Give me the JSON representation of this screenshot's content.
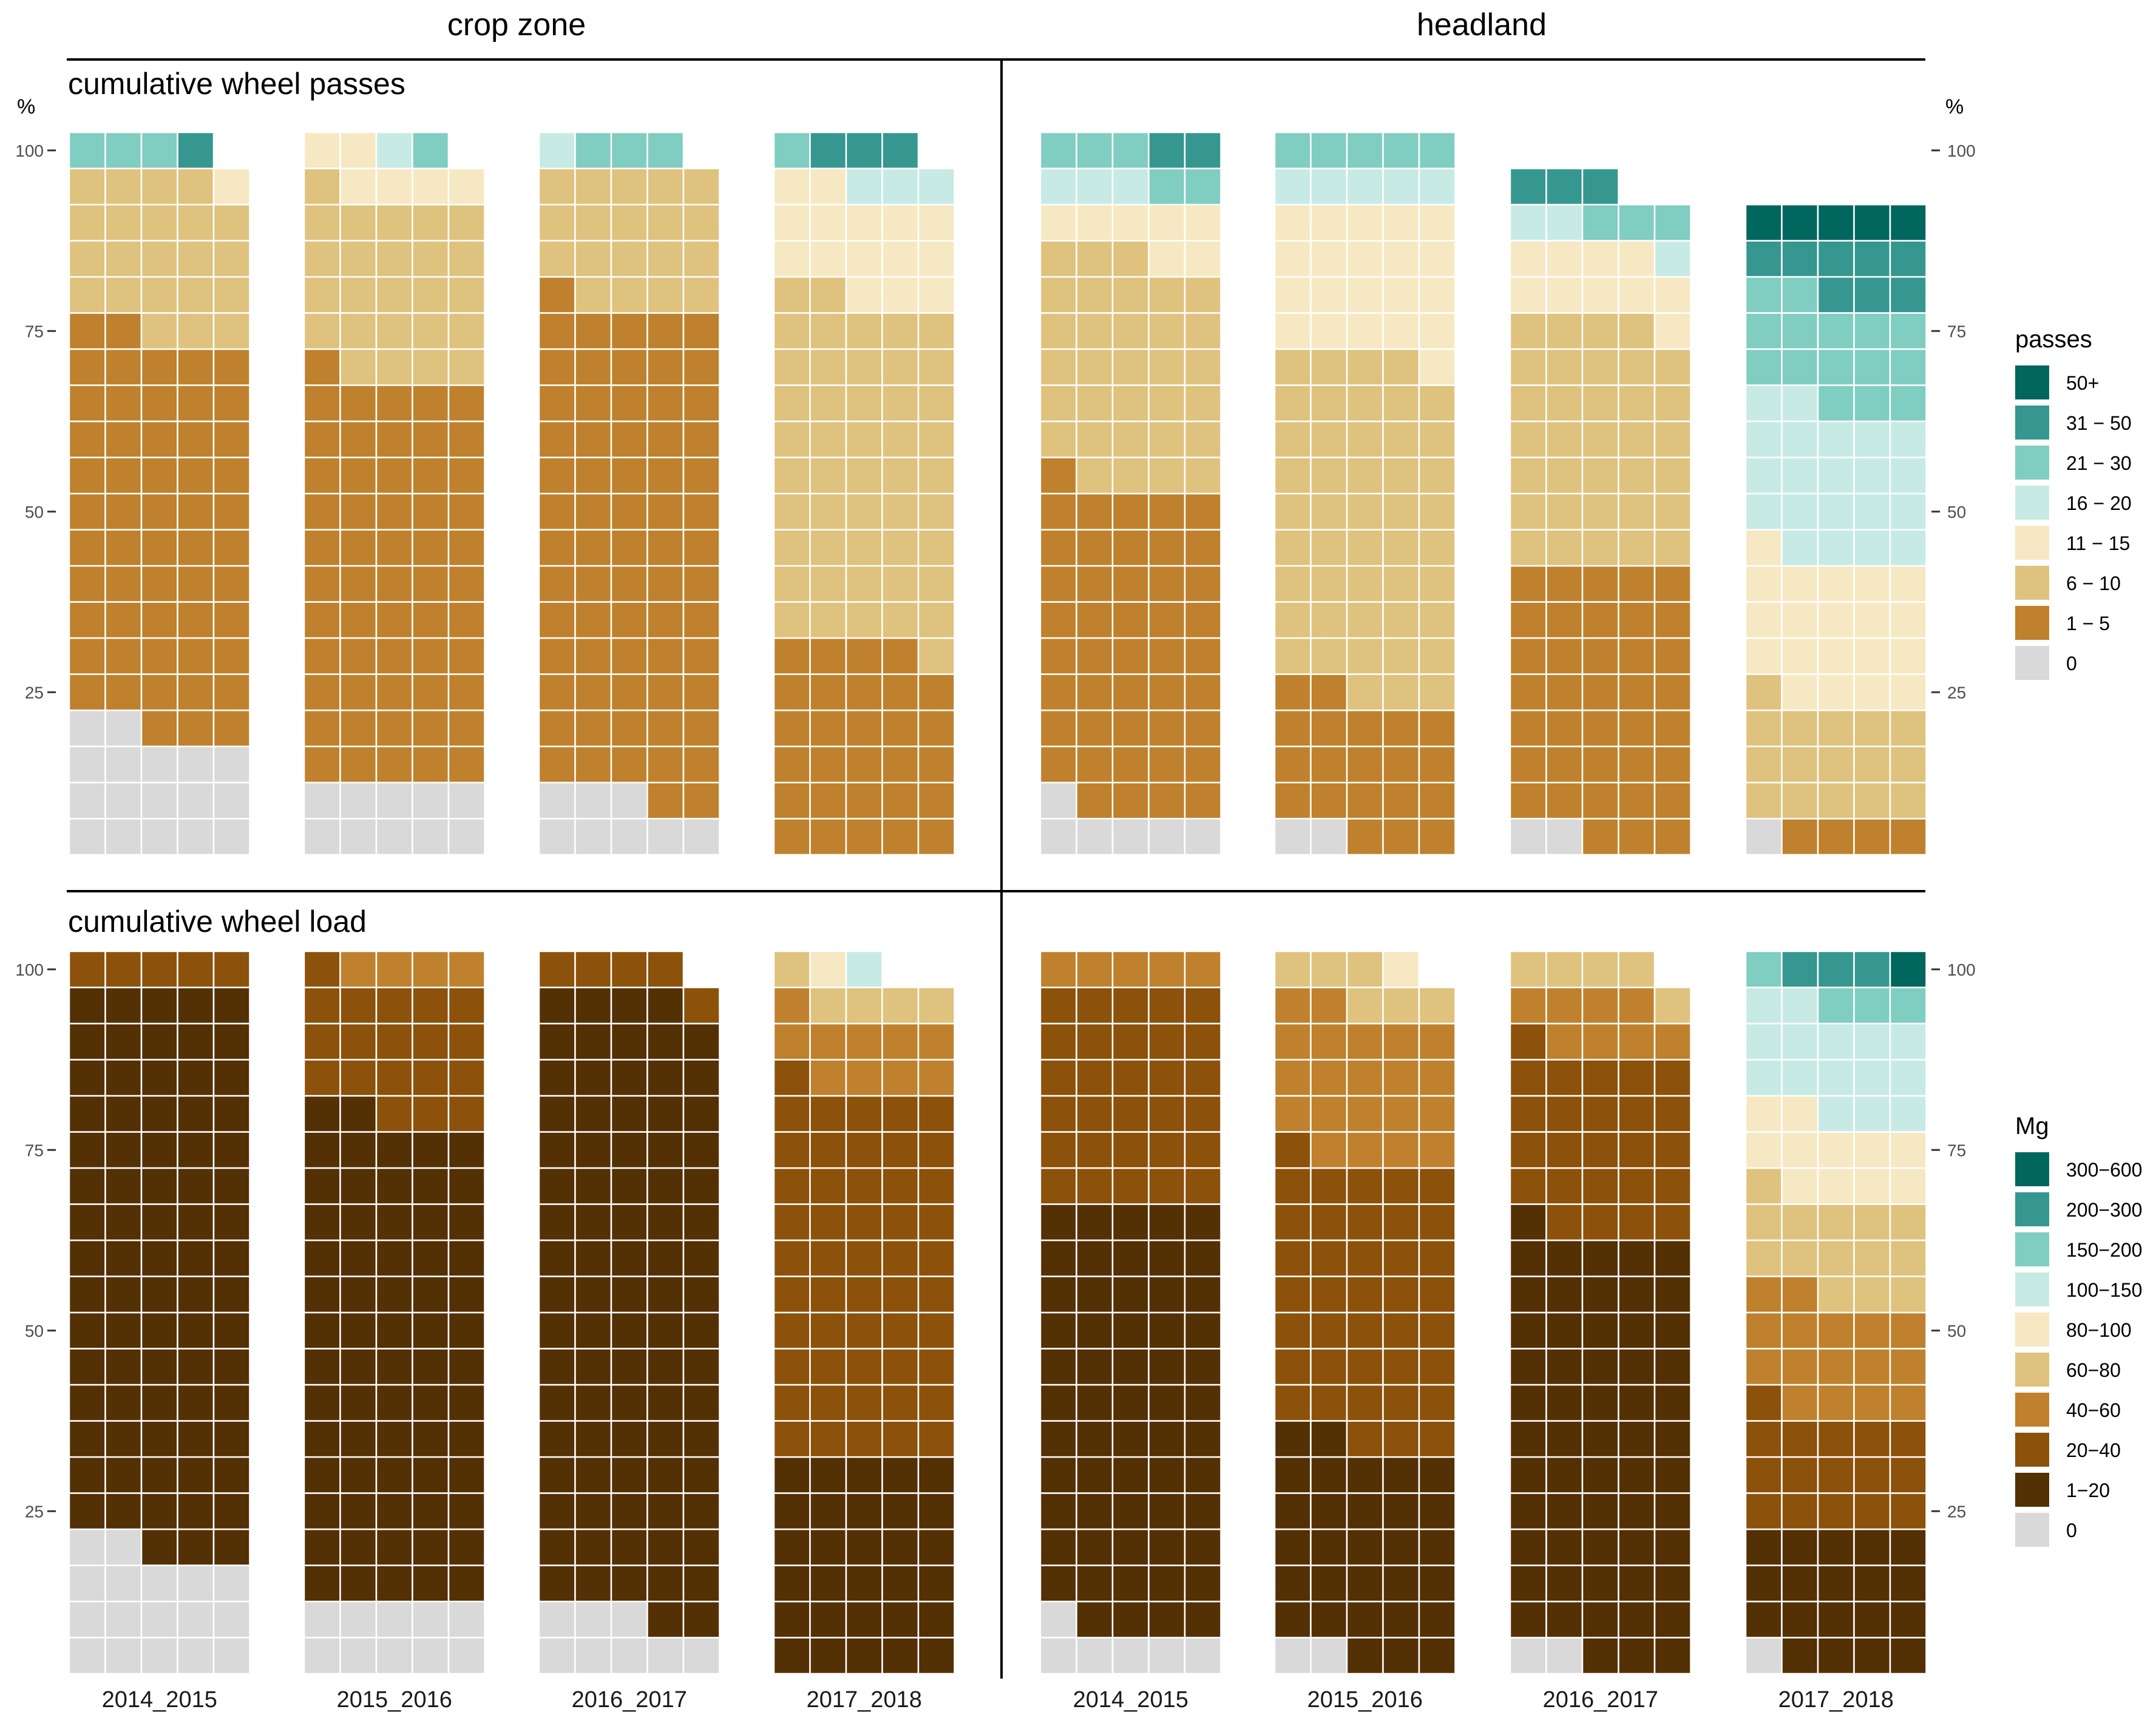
{
  "chart_data": {
    "type": "waffle",
    "unit_note": "each column = 5 cells per row; 20 rows; each cell = 1% of area; stack ordered bottom-up from class 0",
    "column_headers": [
      "crop zone",
      "headland"
    ],
    "rows": [
      {
        "title": "cumulative wheel passes",
        "legend": {
          "title": "passes",
          "classes": [
            "0",
            "1 − 5",
            "6 − 10",
            "11 − 15",
            "16 − 20",
            "21 − 30",
            "31 − 50",
            "50+"
          ],
          "colors": [
            "#d9d9d9",
            "#bf812d",
            "#dfc27d",
            "#f6e8c3",
            "#c7eae5",
            "#80cdc1",
            "#35978f",
            "#01665e"
          ]
        },
        "panels": {
          "crop zone": [
            {
              "season": "2014_2015",
              "counts": [
                17,
                55,
                22,
                1,
                0,
                3,
                1,
                0
              ]
            },
            {
              "season": "2015_2016",
              "counts": [
                10,
                56,
                25,
                6,
                1,
                1,
                0,
                0
              ]
            },
            {
              "season": "2016_2017",
              "counts": [
                8,
                68,
                19,
                0,
                1,
                3,
                0,
                0
              ]
            },
            {
              "season": "2017_2018",
              "counts": [
                0,
                29,
                48,
                15,
                3,
                1,
                3,
                0
              ]
            }
          ],
          "headland": [
            {
              "season": "2014_2015",
              "counts": [
                6,
                45,
                32,
                7,
                3,
                5,
                2,
                0
              ]
            },
            {
              "season": "2015_2016",
              "counts": [
                2,
                20,
                47,
                21,
                5,
                5,
                0,
                0
              ]
            },
            {
              "season": "2016_2017",
              "counts": [
                2,
                38,
                34,
                10,
                3,
                3,
                3,
                0
              ]
            },
            {
              "season": "2017_2018",
              "counts": [
                1,
                4,
                16,
                20,
                21,
                15,
                8,
                5
              ]
            }
          ]
        }
      },
      {
        "title": "cumulative wheel load",
        "legend": {
          "title": "Mg",
          "classes": [
            "0",
            "1−20",
            "20−40",
            "40−60",
            "60−80",
            "80−100",
            "100−150",
            "150−200",
            "200−300",
            "300−600"
          ],
          "colors": [
            "#d9d9d9",
            "#543005",
            "#8c510a",
            "#bf812d",
            "#dfc27d",
            "#f6e8c3",
            "#c7eae5",
            "#80cdc1",
            "#35978f",
            "#01665e"
          ]
        },
        "panels": {
          "crop zone": [
            {
              "season": "2014_2015",
              "counts": [
                17,
                78,
                5,
                0,
                0,
                0,
                0,
                0,
                0,
                0
              ]
            },
            {
              "season": "2015_2016",
              "counts": [
                10,
                67,
                19,
                4,
                0,
                0,
                0,
                0,
                0,
                0
              ]
            },
            {
              "season": "2016_2017",
              "counts": [
                8,
                86,
                5,
                0,
                0,
                0,
                0,
                0,
                0,
                0
              ]
            },
            {
              "season": "2017_2018",
              "counts": [
                0,
                30,
                51,
                10,
                5,
                1,
                1,
                0,
                0,
                0
              ]
            }
          ],
          "headland": [
            {
              "season": "2014_2015",
              "counts": [
                6,
                59,
                30,
                5,
                0,
                0,
                0,
                0,
                0,
                0
              ]
            },
            {
              "season": "2015_2016",
              "counts": [
                2,
                30,
                39,
                21,
                6,
                1,
                0,
                0,
                0,
                0
              ]
            },
            {
              "season": "2016_2017",
              "counts": [
                2,
                59,
                25,
                8,
                5,
                0,
                0,
                0,
                0,
                0
              ]
            },
            {
              "season": "2017_2018",
              "counts": [
                1,
                19,
                16,
                16,
                14,
                11,
                15,
                4,
                3,
                1
              ]
            }
          ]
        }
      }
    ],
    "y_axis": {
      "label": "%",
      "ticks": [
        25,
        50,
        75,
        100
      ]
    }
  }
}
